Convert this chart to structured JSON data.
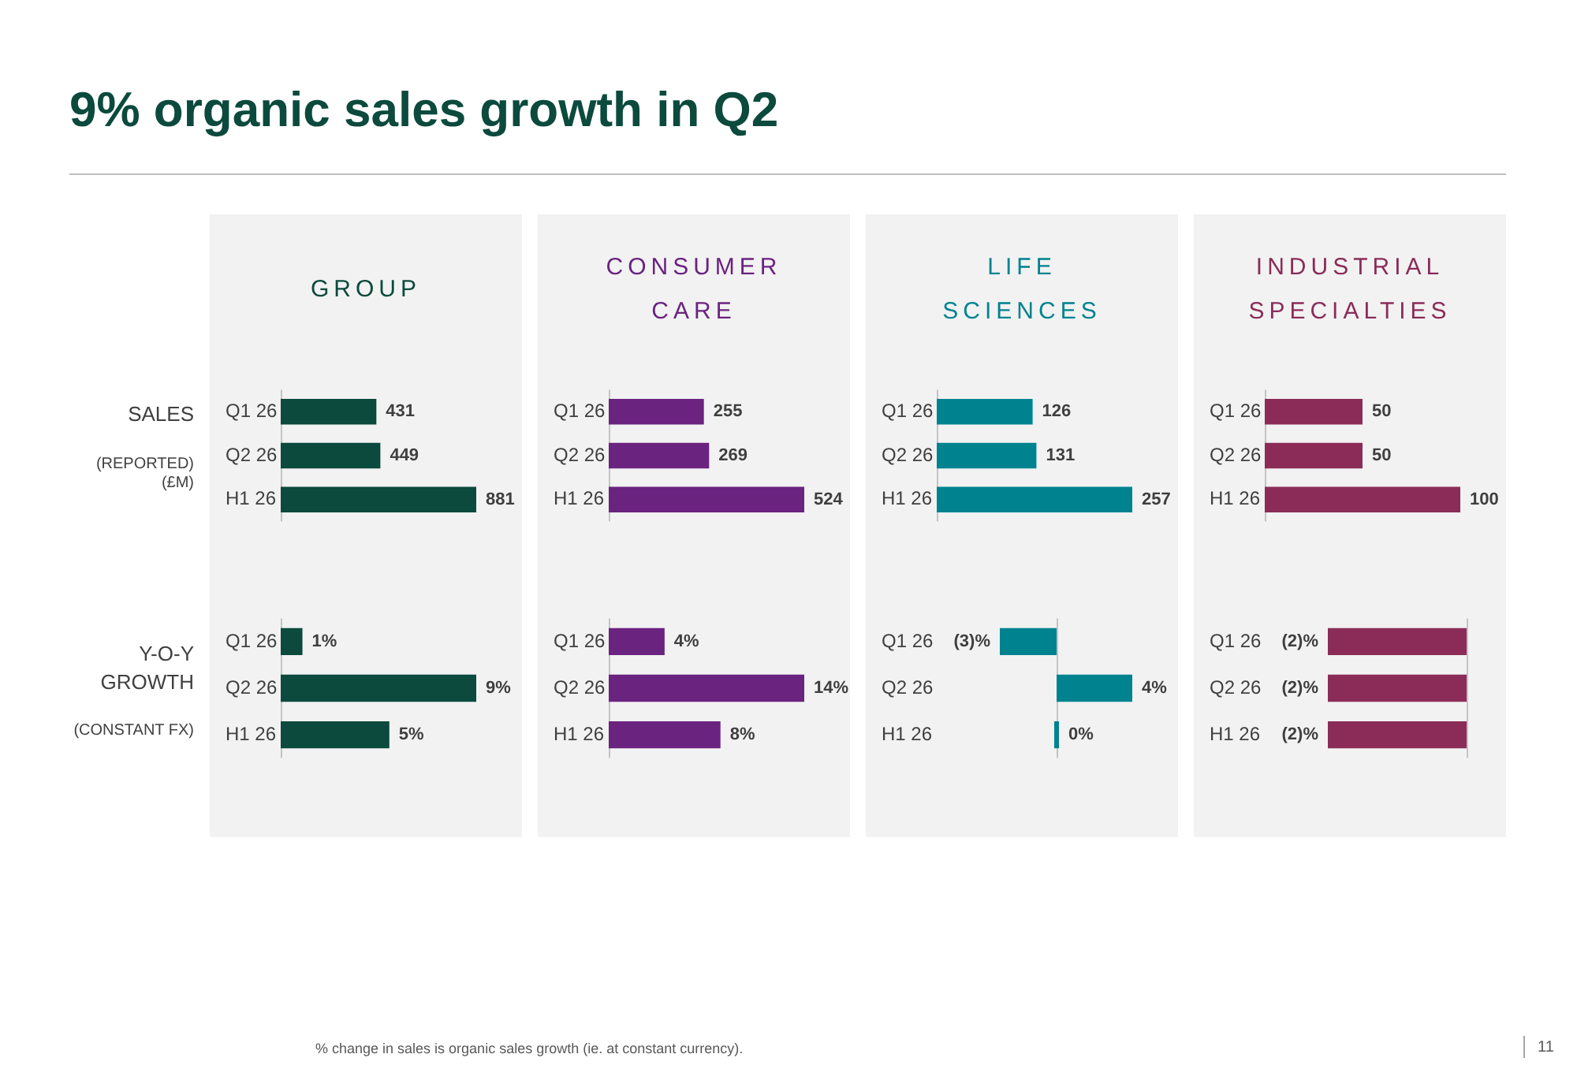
{
  "chart_data": [
    {
      "type": "other",
      "title": "9% organic sales growth in Q2",
      "annotations": [
        "% change in sales is organic sales growth (ie. at constant currency).",
        "11"
      ]
    },
    {
      "type": "bar",
      "orientation": "horizontal",
      "title": "GROUP",
      "ylabel": "SALES",
      "annotations": [
        "(REPORTED)",
        "(£M)"
      ],
      "categories": [
        "Q1 26",
        "Q2 26",
        "H1 26"
      ],
      "values": [
        431,
        449,
        881
      ],
      "color": "#0b4a3c",
      "data_labels": true,
      "tick_labels": "y"
    },
    {
      "type": "bar",
      "orientation": "horizontal",
      "title": "CONSUMER CARE",
      "categories": [
        "Q1 26",
        "Q2 26",
        "H1 26"
      ],
      "values": [
        255,
        269,
        524
      ],
      "color": "#6b2380",
      "data_labels": true,
      "tick_labels": "y"
    },
    {
      "type": "bar",
      "orientation": "horizontal",
      "title": "LIFE SCIENCES",
      "categories": [
        "Q1 26",
        "Q2 26",
        "H1 26"
      ],
      "values": [
        126,
        131,
        257
      ],
      "color": "#00838f",
      "data_labels": true,
      "tick_labels": "y"
    },
    {
      "type": "bar",
      "orientation": "horizontal",
      "title": "INDUSTRIAL SPECIALTIES",
      "categories": [
        "Q1 26",
        "Q2 26",
        "H1 26"
      ],
      "values": [
        50,
        50,
        100
      ],
      "color": "#8b2c58",
      "data_labels": true,
      "tick_labels": "y"
    },
    {
      "type": "bar",
      "orientation": "horizontal",
      "ylabel": "Y-O-Y GROWTH",
      "annotations": [
        "(CONSTANT FX)"
      ],
      "categories": [
        "Q1 26",
        "Q2 26",
        "H1 26"
      ],
      "values": [
        1,
        9,
        5
      ],
      "value_labels": [
        "1%",
        "9%",
        "5%"
      ],
      "color": "#0b4a3c",
      "tick_labels": "y"
    },
    {
      "type": "bar",
      "orientation": "horizontal",
      "categories": [
        "Q1 26",
        "Q2 26",
        "H1 26"
      ],
      "values": [
        4,
        14,
        8
      ],
      "value_labels": [
        "4%",
        "14%",
        "8%"
      ],
      "color": "#6b2380",
      "tick_labels": "y"
    },
    {
      "type": "bar",
      "orientation": "horizontal",
      "categories": [
        "Q1 26",
        "Q2 26",
        "H1 26"
      ],
      "values": [
        -3,
        4,
        0
      ],
      "value_labels": [
        "(3)%",
        "4%",
        "0%"
      ],
      "color": "#00838f",
      "tick_labels": "y"
    },
    {
      "type": "bar",
      "orientation": "horizontal",
      "categories": [
        "Q1 26",
        "Q2 26",
        "H1 26"
      ],
      "values": [
        -2,
        -2,
        -2
      ],
      "value_labels": [
        "(2)%",
        "(2)%",
        "(2)%"
      ],
      "color": "#8b2c58",
      "tick_labels": "y"
    }
  ]
}
